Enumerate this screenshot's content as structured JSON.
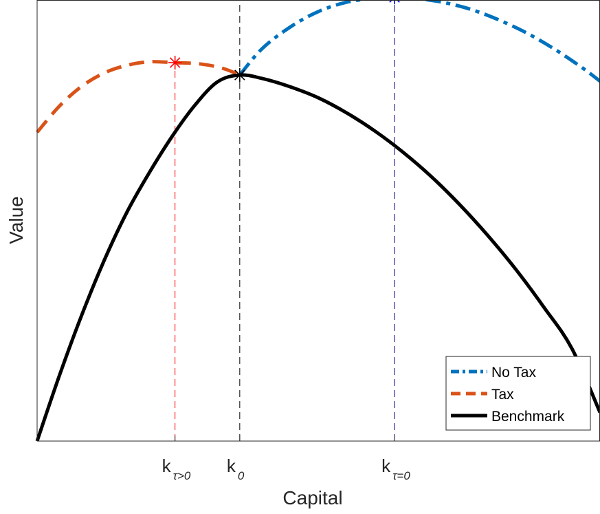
{
  "chart_data": {
    "type": "line",
    "title": "",
    "xlabel": "Capital",
    "ylabel": "Value",
    "grid": false,
    "legend_placement": "bottom-right",
    "xlim": [
      0,
      10
    ],
    "ylim": [
      0,
      10
    ],
    "x_ticks": [
      {
        "main": "k",
        "sub": "τ>0",
        "x": 2.45
      },
      {
        "main": "k",
        "sub": "0",
        "x": 3.6
      },
      {
        "main": "k",
        "sub": "τ=0",
        "x": 6.35
      }
    ],
    "series": [
      {
        "name": "No Tax",
        "color": "#0072BD",
        "style": "dashdot",
        "x": [
          3.6,
          4.0,
          4.5,
          5.0,
          5.5,
          6.0,
          6.35,
          6.7,
          7.2,
          7.7,
          8.2,
          8.7,
          9.2,
          9.7,
          10.0
        ],
        "y": [
          8.3,
          8.9,
          9.39,
          9.74,
          9.95,
          10.04,
          10.06,
          10.04,
          9.95,
          9.79,
          9.55,
          9.25,
          8.88,
          8.45,
          8.16
        ]
      },
      {
        "name": "Tax",
        "color": "#D95319",
        "style": "dashed",
        "x": [
          0.0,
          0.4,
          0.8,
          1.2,
          1.6,
          2.0,
          2.45,
          2.9,
          3.3,
          3.6
        ],
        "y": [
          7.0,
          7.6,
          8.05,
          8.35,
          8.52,
          8.6,
          8.58,
          8.55,
          8.45,
          8.3
        ]
      },
      {
        "name": "Benchmark",
        "color": "#000000",
        "style": "solid",
        "x": [
          0.0,
          0.4,
          0.8,
          1.2,
          1.6,
          2.0,
          2.4,
          2.8,
          3.2,
          3.6,
          4.0,
          4.5,
          5.0,
          5.5,
          6.0,
          6.5,
          7.0,
          7.5,
          8.0,
          8.5,
          9.0,
          9.5,
          10.0
        ],
        "y": [
          0.0,
          1.5,
          2.88,
          4.12,
          5.2,
          6.1,
          6.91,
          7.61,
          8.14,
          8.3,
          8.22,
          8.03,
          7.78,
          7.44,
          7.03,
          6.55,
          6.0,
          5.37,
          4.67,
          3.9,
          3.04,
          2.1,
          0.65
        ]
      }
    ],
    "markers": [
      {
        "series": "Tax",
        "x": 2.45,
        "y": 8.58,
        "color": "#FF0000",
        "symbol": "asterisk"
      },
      {
        "series": "Benchmark",
        "x": 3.6,
        "y": 8.3,
        "color": "#000000",
        "symbol": "asterisk"
      },
      {
        "series": "No Tax",
        "x": 6.35,
        "y": 10.06,
        "color": "#0000FF",
        "symbol": "asterisk"
      }
    ],
    "vlines": [
      {
        "x": 2.45,
        "y_top": 8.58,
        "color": "#FF0000",
        "style": "dashed"
      },
      {
        "x": 3.6,
        "y_top": 10.0,
        "color": "#000000",
        "style": "dashed"
      },
      {
        "x": 6.35,
        "y_top": 10.0,
        "color": "#000080",
        "style": "dashed"
      }
    ]
  }
}
